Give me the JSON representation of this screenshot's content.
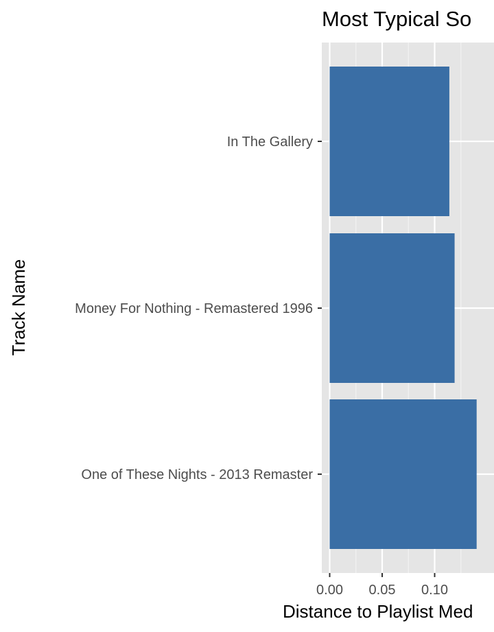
{
  "chart_data": {
    "type": "bar",
    "orientation": "horizontal",
    "title": "Most Typical So",
    "xlabel": "Distance to Playlist Med",
    "ylabel": "Track Name",
    "categories": [
      "In The Gallery",
      "Money For Nothing - Remastered 1996",
      "One of These Nights - 2013 Remaster"
    ],
    "values": [
      0.114,
      0.119,
      0.14
    ],
    "x_ticks": [
      "0.00",
      "0.05",
      "0.10"
    ],
    "x_tick_values": [
      0.0,
      0.05,
      0.1
    ],
    "grid": true,
    "legend": "none",
    "colors": {
      "bar": "#3a6ea5",
      "panel": "#e5e5e5",
      "grid_major": "#ffffff",
      "grid_minor": "#f2f2f2",
      "tick": "#333333"
    }
  }
}
